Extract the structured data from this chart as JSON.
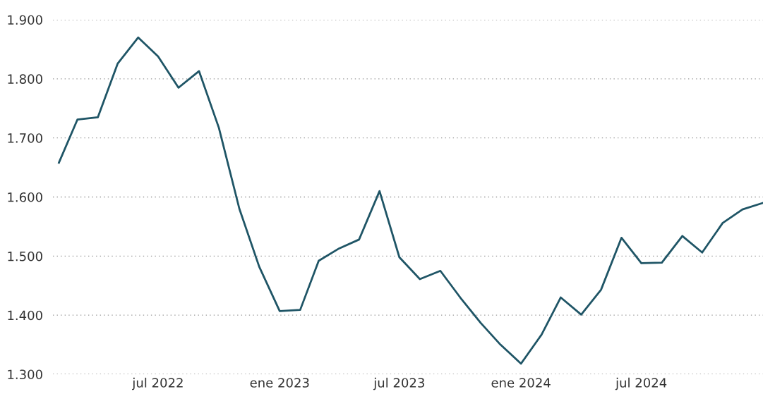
{
  "chart_data": {
    "type": "line",
    "x": [
      "2022-02",
      "2022-03",
      "2022-04",
      "2022-05",
      "2022-06",
      "2022-07",
      "2022-08",
      "2022-09",
      "2022-10",
      "2022-11",
      "2022-12",
      "2023-01",
      "2023-02",
      "2023-03",
      "2023-04",
      "2023-05",
      "2023-06",
      "2023-07",
      "2023-08",
      "2023-09",
      "2023-10",
      "2023-11",
      "2023-12",
      "2024-01",
      "2024-02",
      "2024-03",
      "2024-04",
      "2024-05",
      "2024-06",
      "2024-07",
      "2024-08",
      "2024-09",
      "2024-10",
      "2024-11",
      "2024-12",
      "2025-01"
    ],
    "series": [
      {
        "color": "#1f5566",
        "values": [
          1658,
          1731,
          1735,
          1826,
          1870,
          1838,
          1785,
          1813,
          1717,
          1580,
          1482,
          1407,
          1409,
          1492,
          1513,
          1528,
          1610,
          1498,
          1461,
          1475,
          1430,
          1387,
          1350,
          1318,
          1367,
          1430,
          1401,
          1443,
          1531,
          1488,
          1489,
          1534,
          1506,
          1556,
          1579,
          1590
        ]
      }
    ],
    "xlim": [
      "2022-01-23",
      "2025-01-01"
    ],
    "xticks": [
      {
        "value": "2022-07-01",
        "label": "jul 2022"
      },
      {
        "value": "2023-01-01",
        "label": "ene 2023"
      },
      {
        "value": "2023-07-01",
        "label": "jul 2023"
      },
      {
        "value": "2024-01-01",
        "label": "ene 2024"
      },
      {
        "value": "2024-07-01",
        "label": "jul 2024"
      }
    ],
    "ylim": [
      1300,
      1900
    ],
    "yticks": [
      {
        "value": 1300,
        "label": "1.300"
      },
      {
        "value": 1400,
        "label": "1.400"
      },
      {
        "value": 1500,
        "label": "1.500"
      },
      {
        "value": 1600,
        "label": "1.600"
      },
      {
        "value": 1700,
        "label": "1.700"
      },
      {
        "value": 1800,
        "label": "1.800"
      },
      {
        "value": 1900,
        "label": "1.900"
      }
    ],
    "grid": "y",
    "marker": "none",
    "line_style": "solid"
  }
}
